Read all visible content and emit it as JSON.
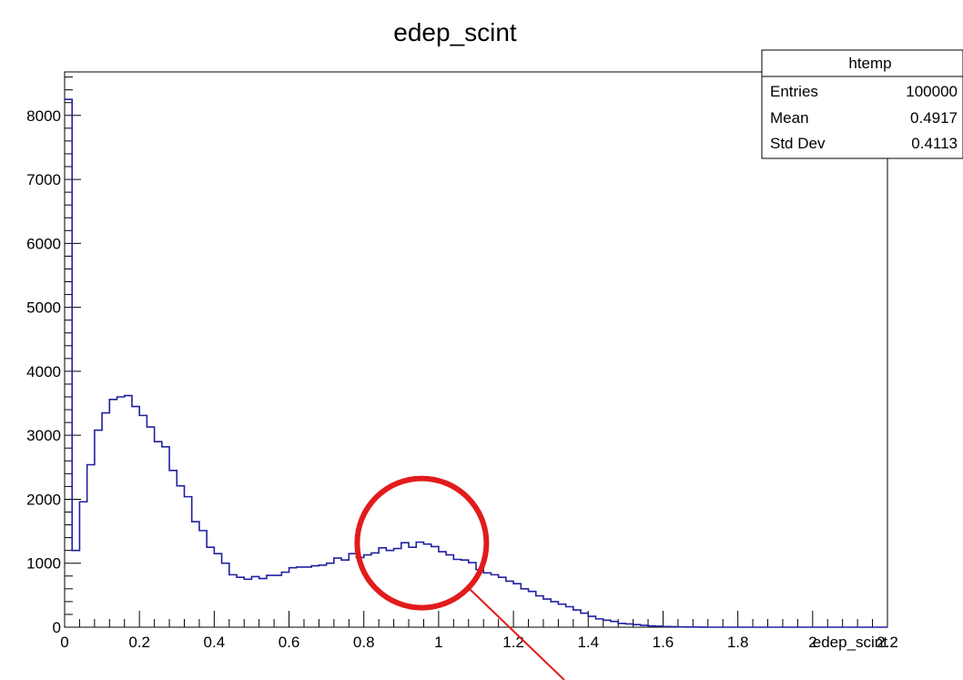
{
  "chart_data": {
    "type": "histogram",
    "title": "edep_scint",
    "xlabel": "edep_scint",
    "ylabel": "",
    "xlim": [
      0,
      2.2
    ],
    "ylim": [
      0,
      8680
    ],
    "bin_width": 0.02,
    "x_ticks": [
      "0",
      "0.2",
      "0.4",
      "0.6",
      "0.8",
      "1",
      "1.2",
      "1.4",
      "1.6",
      "1.8",
      "2",
      "2.2"
    ],
    "y_ticks": [
      "0",
      "1000",
      "2000",
      "3000",
      "4000",
      "5000",
      "6000",
      "7000",
      "8000"
    ],
    "grid": false,
    "line_color": "#2020a0",
    "stats_box": {
      "name": "htemp",
      "rows": [
        {
          "label": "Entries",
          "value": "100000"
        },
        {
          "label": "Mean",
          "value": "0.4917"
        },
        {
          "label": "Std Dev",
          "value": "0.4113"
        }
      ]
    },
    "annotation": {
      "type": "circle",
      "color": "#e21b1b",
      "center": [
        0.955,
        1315
      ],
      "note": "highlighted peak"
    },
    "counts": [
      8250,
      1200,
      1960,
      2540,
      3080,
      3350,
      3560,
      3600,
      3620,
      3450,
      3310,
      3130,
      2900,
      2820,
      2450,
      2210,
      2040,
      1650,
      1510,
      1250,
      1150,
      1000,
      820,
      780,
      750,
      790,
      760,
      810,
      810,
      860,
      930,
      940,
      940,
      960,
      970,
      1000,
      1080,
      1050,
      1150,
      1090,
      1130,
      1160,
      1240,
      1200,
      1230,
      1320,
      1250,
      1330,
      1300,
      1260,
      1180,
      1130,
      1060,
      1050,
      1010,
      900,
      850,
      820,
      780,
      720,
      680,
      600,
      560,
      490,
      440,
      400,
      360,
      320,
      270,
      220,
      170,
      130,
      110,
      90,
      60,
      50,
      40,
      30,
      20,
      15,
      10,
      8,
      5,
      3,
      2,
      1,
      0,
      0,
      0,
      0,
      0,
      0,
      0,
      0,
      0,
      0,
      0,
      0,
      0,
      0,
      0,
      0,
      0,
      0,
      0,
      0,
      0,
      0,
      0,
      0
    ]
  }
}
